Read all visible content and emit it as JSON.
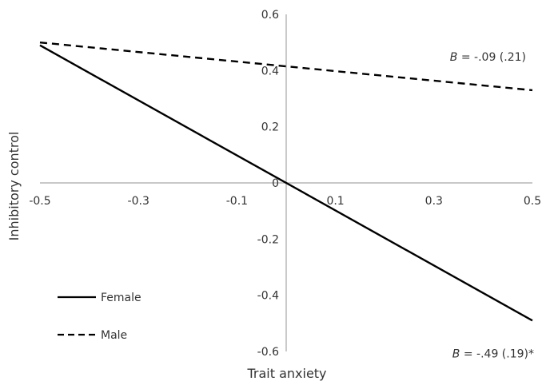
{
  "chart_data": {
    "type": "line",
    "xlabel": "Trait anxiety",
    "ylabel": "Inhibitory control",
    "xlim": [
      -0.5,
      0.5
    ],
    "ylim": [
      -0.6,
      0.6
    ],
    "x_ticks": [
      "-0.5",
      "-0.3",
      "-0.1",
      "0.1",
      "0.3",
      "0.5"
    ],
    "y_ticks": [
      "0.6",
      "0.4",
      "0.2",
      "0",
      "-0.2",
      "-0.4",
      "-0.6"
    ],
    "x_tick_values": [
      -0.5,
      -0.3,
      -0.1,
      0.1,
      0.3,
      0.5
    ],
    "y_tick_values": [
      0.6,
      0.4,
      0.2,
      0,
      -0.2,
      -0.4,
      -0.6
    ],
    "grid": false,
    "legend_position": "bottom-left",
    "series": [
      {
        "name": "Female",
        "style": "solid",
        "color": "#000000",
        "points": [
          {
            "x": -0.5,
            "y": 0.49
          },
          {
            "x": 0.5,
            "y": -0.49
          }
        ]
      },
      {
        "name": "Male",
        "style": "dashed",
        "color": "#000000",
        "points": [
          {
            "x": -0.5,
            "y": 0.5
          },
          {
            "x": 0.5,
            "y": 0.33
          }
        ]
      }
    ],
    "annotations": [
      {
        "prefix": "B",
        "text": " = -.09 (.21)",
        "series": "Male"
      },
      {
        "prefix": "B",
        "text": " = -.49 (.19)*",
        "series": "Female"
      }
    ]
  }
}
